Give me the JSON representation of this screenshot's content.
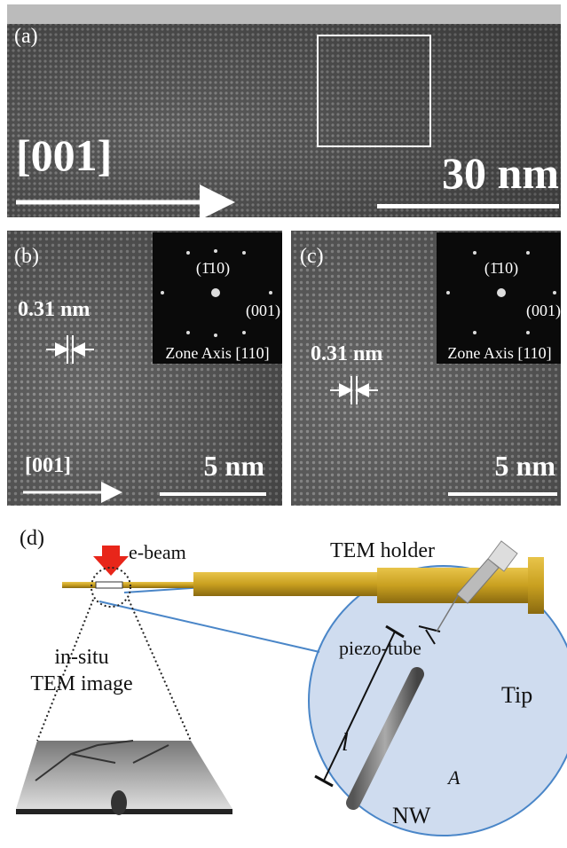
{
  "panels": [
    {
      "label": "(a)",
      "direction": "[001]",
      "scale_bar": "30 nm"
    },
    {
      "label": "(b)",
      "spacing": "0.31 nm",
      "direction": "[001]",
      "scale_bar": "5 nm",
      "inset": {
        "spot_top": "(1̄10)",
        "spot_right": "(001)",
        "zone_axis": "Zone Axis [110]"
      }
    },
    {
      "label": "(c)",
      "spacing": "0.31 nm",
      "scale_bar": "5 nm",
      "inset": {
        "spot_top": "(1̄10)",
        "spot_right": "(001)",
        "zone_axis": "Zone Axis [110]"
      }
    }
  ],
  "schematic": {
    "label": "(d)",
    "e_beam": "e-beam",
    "holder": "TEM holder",
    "piezo": "piezo-tube",
    "tip": "Tip",
    "length": "l",
    "amplitude": "A",
    "nanowire": "NW",
    "image_line1": "in-situ",
    "image_line2": "TEM image"
  }
}
